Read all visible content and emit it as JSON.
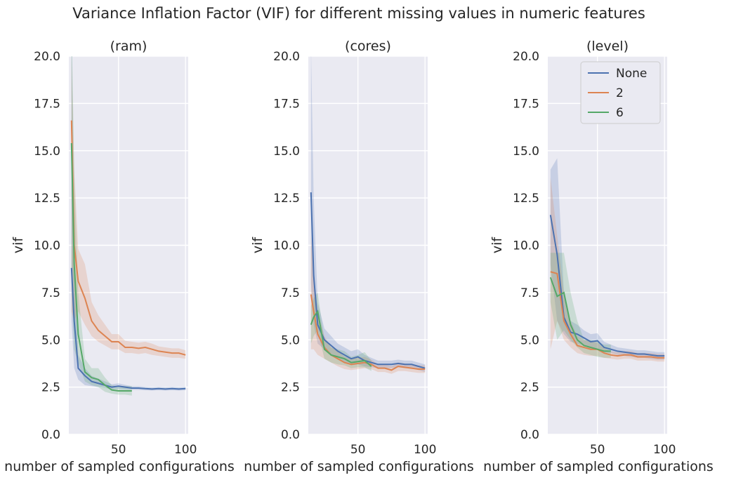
{
  "suptitle": "Variance Inflation Factor (VIF) for different missing values in numeric features",
  "colors": {
    "None": "#4c72b0",
    "2": "#dd8452",
    "6": "#55a868"
  },
  "chart_data": [
    {
      "type": "line",
      "title": "(ram)",
      "xlabel": "number of sampled configurations",
      "ylabel": "vif",
      "xlim": [
        13,
        102
      ],
      "ylim": [
        0,
        20
      ],
      "xticks": [
        50,
        100
      ],
      "yticks": [
        0.0,
        2.5,
        5.0,
        7.5,
        10.0,
        12.5,
        15.0,
        17.5,
        20.0
      ],
      "grid": true,
      "series": [
        {
          "name": "None",
          "color": "#4c72b0",
          "x": [
            15,
            17,
            20,
            25,
            30,
            35,
            40,
            45,
            50,
            55,
            60,
            65,
            70,
            75,
            80,
            85,
            90,
            95,
            100
          ],
          "y": [
            8.8,
            6.0,
            3.5,
            3.1,
            2.8,
            2.7,
            2.6,
            2.5,
            2.55,
            2.5,
            2.45,
            2.45,
            2.42,
            2.4,
            2.42,
            2.4,
            2.42,
            2.4,
            2.42
          ],
          "lower": [
            6.0,
            3.5,
            2.9,
            2.6,
            2.55,
            2.5,
            2.45,
            2.4,
            2.4,
            2.38,
            2.36,
            2.35,
            2.33,
            2.32,
            2.33,
            2.32,
            2.33,
            2.32,
            2.33
          ],
          "upper": [
            22.0,
            10.0,
            4.2,
            3.5,
            3.1,
            2.95,
            2.8,
            2.65,
            2.7,
            2.62,
            2.55,
            2.55,
            2.52,
            2.5,
            2.52,
            2.5,
            2.52,
            2.5,
            2.52
          ]
        },
        {
          "name": "2",
          "color": "#dd8452",
          "x": [
            15,
            17,
            20,
            25,
            30,
            35,
            40,
            45,
            50,
            55,
            60,
            65,
            70,
            75,
            80,
            85,
            90,
            95,
            100
          ],
          "y": [
            16.6,
            10.0,
            8.1,
            7.2,
            6.0,
            5.5,
            5.2,
            4.9,
            4.9,
            4.6,
            4.6,
            4.55,
            4.6,
            4.5,
            4.4,
            4.35,
            4.3,
            4.3,
            4.2
          ],
          "lower": [
            6.5,
            6.0,
            6.5,
            5.8,
            5.2,
            4.9,
            4.7,
            4.5,
            4.5,
            4.3,
            4.3,
            4.25,
            4.3,
            4.2,
            4.15,
            4.1,
            4.05,
            4.05,
            4.0
          ],
          "upper": [
            20.0,
            14.0,
            9.8,
            9.0,
            7.0,
            6.3,
            5.8,
            5.3,
            5.3,
            4.95,
            4.9,
            4.85,
            4.9,
            4.8,
            4.65,
            4.6,
            4.55,
            4.55,
            4.45
          ]
        },
        {
          "name": "6",
          "color": "#55a868",
          "x": [
            15,
            17,
            20,
            25,
            30,
            35,
            40,
            45,
            50,
            55,
            60
          ],
          "y": [
            15.4,
            9.0,
            5.3,
            3.3,
            3.0,
            2.9,
            2.6,
            2.35,
            2.3,
            2.3,
            2.3
          ],
          "lower": [
            8.0,
            4.5,
            3.8,
            2.8,
            2.6,
            2.5,
            2.25,
            2.15,
            2.1,
            2.1,
            2.05
          ],
          "upper": [
            22.0,
            14.0,
            7.5,
            4.0,
            3.5,
            3.5,
            3.0,
            2.6,
            2.55,
            2.55,
            2.55
          ]
        }
      ]
    },
    {
      "type": "line",
      "title": "(cores)",
      "xlabel": "number of sampled configurations",
      "ylabel": "vif",
      "xlim": [
        13,
        102
      ],
      "ylim": [
        0,
        20
      ],
      "xticks": [
        50,
        100
      ],
      "yticks": [
        0.0,
        2.5,
        5.0,
        7.5,
        10.0,
        12.5,
        15.0,
        17.5,
        20.0
      ],
      "grid": true,
      "series": [
        {
          "name": "None",
          "color": "#4c72b0",
          "x": [
            15,
            17,
            20,
            25,
            30,
            35,
            40,
            45,
            50,
            55,
            60,
            65,
            70,
            75,
            80,
            85,
            90,
            95,
            100
          ],
          "y": [
            12.8,
            8.4,
            5.8,
            5.0,
            4.7,
            4.4,
            4.2,
            4.0,
            4.1,
            3.9,
            3.8,
            3.7,
            3.7,
            3.7,
            3.75,
            3.7,
            3.7,
            3.6,
            3.5
          ],
          "lower": [
            8.0,
            5.8,
            4.8,
            4.5,
            4.2,
            4.0,
            3.8,
            3.65,
            3.7,
            3.6,
            3.55,
            3.5,
            3.5,
            3.5,
            3.55,
            3.5,
            3.5,
            3.4,
            3.3
          ],
          "upper": [
            20.5,
            12.5,
            7.0,
            5.6,
            5.2,
            4.8,
            4.6,
            4.4,
            4.5,
            4.2,
            4.05,
            3.9,
            3.9,
            3.9,
            3.95,
            3.9,
            3.9,
            3.8,
            3.7
          ]
        },
        {
          "name": "2",
          "color": "#dd8452",
          "x": [
            15,
            17,
            20,
            25,
            30,
            35,
            40,
            45,
            50,
            55,
            60,
            65,
            70,
            75,
            80,
            85,
            90,
            95,
            100
          ],
          "y": [
            7.4,
            6.5,
            5.3,
            4.6,
            4.2,
            4.0,
            3.8,
            3.7,
            3.75,
            3.8,
            3.7,
            3.5,
            3.5,
            3.4,
            3.6,
            3.55,
            3.5,
            3.45,
            3.45
          ],
          "lower": [
            4.5,
            4.5,
            4.2,
            4.0,
            3.8,
            3.6,
            3.45,
            3.4,
            3.45,
            3.5,
            3.45,
            3.3,
            3.3,
            3.2,
            3.35,
            3.35,
            3.3,
            3.25,
            3.25
          ],
          "upper": [
            10.5,
            8.5,
            6.5,
            5.2,
            4.6,
            4.4,
            4.1,
            4.0,
            4.05,
            4.1,
            3.95,
            3.7,
            3.7,
            3.6,
            3.8,
            3.75,
            3.7,
            3.65,
            3.65
          ]
        },
        {
          "name": "6",
          "color": "#55a868",
          "x": [
            15,
            17,
            20,
            25,
            30,
            35,
            40,
            45,
            50,
            55,
            60
          ],
          "y": [
            5.8,
            6.2,
            6.5,
            4.5,
            4.2,
            4.1,
            4.0,
            3.8,
            3.85,
            3.9,
            3.6
          ],
          "lower": [
            4.8,
            5.2,
            5.5,
            4.0,
            3.8,
            3.7,
            3.65,
            3.5,
            3.55,
            3.55,
            3.35
          ],
          "upper": [
            6.8,
            7.2,
            7.5,
            5.0,
            4.6,
            4.5,
            4.4,
            4.1,
            4.2,
            4.35,
            3.9
          ]
        }
      ]
    },
    {
      "type": "line",
      "title": "(level)",
      "xlabel": "number of sampled configurations",
      "ylabel": "vif",
      "xlim": [
        13,
        102
      ],
      "ylim": [
        0,
        20
      ],
      "xticks": [
        50,
        100
      ],
      "yticks": [
        0.0,
        2.5,
        5.0,
        7.5,
        10.0,
        12.5,
        15.0,
        17.5,
        20.0
      ],
      "grid": true,
      "legend": {
        "placement": "top-right",
        "entries": [
          "None",
          "2",
          "6"
        ]
      },
      "series": [
        {
          "name": "None",
          "color": "#4c72b0",
          "x": [
            15,
            20,
            25,
            30,
            35,
            40,
            45,
            50,
            55,
            60,
            65,
            70,
            75,
            80,
            85,
            90,
            95,
            100
          ],
          "y": [
            11.6,
            9.5,
            6.2,
            5.4,
            5.3,
            5.1,
            4.9,
            4.95,
            4.6,
            4.5,
            4.4,
            4.35,
            4.3,
            4.25,
            4.25,
            4.2,
            4.15,
            4.15
          ],
          "lower": [
            9.0,
            6.0,
            5.3,
            4.9,
            4.8,
            4.7,
            4.5,
            4.55,
            4.35,
            4.3,
            4.2,
            4.15,
            4.1,
            4.05,
            4.05,
            4.0,
            3.95,
            3.95
          ],
          "upper": [
            14.0,
            14.6,
            7.5,
            6.0,
            5.8,
            5.5,
            5.3,
            5.35,
            4.9,
            4.75,
            4.6,
            4.55,
            4.5,
            4.45,
            4.45,
            4.4,
            4.35,
            4.35
          ]
        },
        {
          "name": "2",
          "color": "#dd8452",
          "x": [
            15,
            20,
            25,
            30,
            35,
            40,
            45,
            50,
            55,
            60,
            65,
            70,
            75,
            80,
            85,
            90,
            95,
            100
          ],
          "y": [
            8.6,
            8.5,
            6.0,
            5.3,
            4.7,
            4.6,
            4.5,
            4.5,
            4.3,
            4.2,
            4.15,
            4.2,
            4.2,
            4.1,
            4.1,
            4.1,
            4.05,
            4.05
          ],
          "lower": [
            4.5,
            6.0,
            5.0,
            4.6,
            4.3,
            4.2,
            4.15,
            4.15,
            4.05,
            4.0,
            3.95,
            4.0,
            4.0,
            3.9,
            3.9,
            3.9,
            3.85,
            3.85
          ],
          "upper": [
            13.6,
            10.5,
            7.5,
            6.0,
            5.2,
            5.0,
            4.9,
            4.85,
            4.55,
            4.4,
            4.35,
            4.4,
            4.4,
            4.3,
            4.3,
            4.3,
            4.25,
            4.25
          ]
        },
        {
          "name": "6",
          "color": "#55a868",
          "x": [
            15,
            20,
            25,
            30,
            35,
            40,
            45,
            50,
            55,
            60
          ],
          "y": [
            8.3,
            7.3,
            7.5,
            5.8,
            5.0,
            4.7,
            4.6,
            4.5,
            4.4,
            4.4
          ],
          "lower": [
            7.0,
            5.0,
            5.5,
            5.0,
            4.6,
            4.3,
            4.2,
            4.1,
            4.05,
            4.05
          ],
          "upper": [
            9.6,
            9.6,
            9.6,
            7.5,
            6.0,
            5.0,
            5.0,
            4.9,
            4.75,
            4.75
          ]
        }
      ]
    }
  ]
}
